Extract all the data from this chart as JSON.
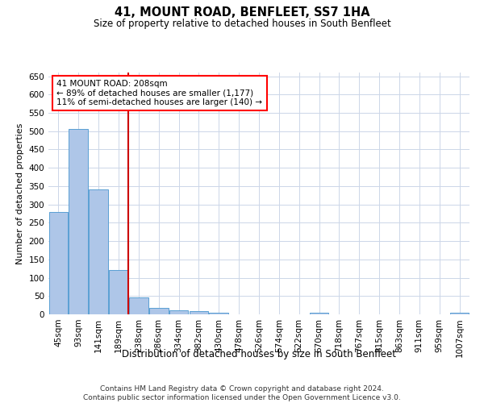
{
  "title": "41, MOUNT ROAD, BENFLEET, SS7 1HA",
  "subtitle": "Size of property relative to detached houses in South Benfleet",
  "xlabel": "Distribution of detached houses by size in South Benfleet",
  "ylabel": "Number of detached properties",
  "footer_line1": "Contains HM Land Registry data © Crown copyright and database right 2024.",
  "footer_line2": "Contains public sector information licensed under the Open Government Licence v3.0.",
  "annotation_line1": "41 MOUNT ROAD: 208sqm",
  "annotation_line2": "← 89% of detached houses are smaller (1,177)",
  "annotation_line3": "11% of semi-detached houses are larger (140) →",
  "bar_labels": [
    "45sqm",
    "93sqm",
    "141sqm",
    "189sqm",
    "238sqm",
    "286sqm",
    "334sqm",
    "382sqm",
    "430sqm",
    "478sqm",
    "526sqm",
    "574sqm",
    "622sqm",
    "670sqm",
    "718sqm",
    "767sqm",
    "815sqm",
    "863sqm",
    "911sqm",
    "959sqm",
    "1007sqm"
  ],
  "bar_values": [
    280,
    505,
    340,
    120,
    47,
    17,
    10,
    8,
    5,
    0,
    0,
    0,
    0,
    5,
    0,
    0,
    0,
    0,
    0,
    0,
    5
  ],
  "bar_color": "#aec6e8",
  "bar_edge_color": "#5a9fd4",
  "vline_color": "#cc0000",
  "vline_x_index": 3,
  "ylim": [
    0,
    660
  ],
  "yticks": [
    0,
    50,
    100,
    150,
    200,
    250,
    300,
    350,
    400,
    450,
    500,
    550,
    600,
    650
  ],
  "grid_color": "#ccd6e8",
  "background_color": "#ffffff",
  "title_fontsize": 10.5,
  "subtitle_fontsize": 8.5,
  "ylabel_fontsize": 8,
  "xlabel_fontsize": 8.5,
  "tick_fontsize": 7.5,
  "annotation_fontsize": 7.5,
  "footer_fontsize": 6.5
}
